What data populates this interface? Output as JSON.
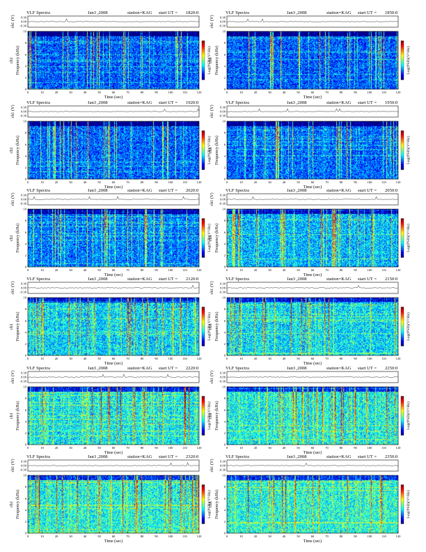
{
  "header": {
    "program": "VLF Spectra",
    "date": "Jan3 ,2008",
    "station": "station=KAG",
    "start_prefix": "start  UT  ="
  },
  "labels": {
    "ch1_waveform": "ch1 (V)",
    "ch1_prefix": "ch1",
    "frequency": "Frequency (kHz)",
    "time": "Time (sec)",
    "colorbar": "Log(PSD)(V²/Hz)",
    "waveform_ticks": [
      "0.30",
      "0.00",
      "-0.30"
    ]
  },
  "chart_data": [
    {
      "type": "heatmap",
      "title": "1820:0",
      "xlabel": "Time (sec)",
      "ylabel": "Frequency (kHz)",
      "xlim": [
        0,
        120
      ],
      "ylim": [
        0,
        10
      ],
      "xticks": [
        0,
        10,
        20,
        30,
        40,
        50,
        60,
        70,
        80,
        90,
        100,
        110,
        120
      ],
      "yticks": [
        0,
        2,
        4,
        6,
        8,
        10
      ],
      "intensity": 0.35
    },
    {
      "type": "heatmap",
      "title": "1850:0",
      "xlabel": "Time (sec)",
      "ylabel": "Frequency (kHz)",
      "xlim": [
        0,
        120
      ],
      "ylim": [
        0,
        10
      ],
      "xticks": [
        0,
        10,
        20,
        30,
        40,
        50,
        60,
        70,
        80,
        90,
        100,
        110,
        120
      ],
      "yticks": [
        0,
        2,
        4,
        6,
        8,
        10
      ],
      "intensity": 0.35
    },
    {
      "type": "heatmap",
      "title": "1920:0",
      "xlabel": "Time (sec)",
      "ylabel": "Frequency (kHz)",
      "xlim": [
        0,
        120
      ],
      "ylim": [
        0,
        10
      ],
      "xticks": [
        0,
        10,
        20,
        30,
        40,
        50,
        60,
        70,
        80,
        90,
        100,
        110,
        120
      ],
      "yticks": [
        0,
        2,
        4,
        6,
        8,
        10
      ],
      "intensity": 0.38
    },
    {
      "type": "heatmap",
      "title": "1950:0",
      "xlabel": "Time (sec)",
      "ylabel": "Frequency (kHz)",
      "xlim": [
        0,
        120
      ],
      "ylim": [
        0,
        10
      ],
      "xticks": [
        0,
        10,
        20,
        30,
        40,
        50,
        60,
        70,
        80,
        90,
        100,
        110,
        120
      ],
      "yticks": [
        0,
        2,
        4,
        6,
        8,
        10
      ],
      "intensity": 0.38
    },
    {
      "type": "heatmap",
      "title": "2020:0",
      "xlabel": "Time (sec)",
      "ylabel": "Frequency (kHz)",
      "xlim": [
        0,
        120
      ],
      "ylim": [
        0,
        10
      ],
      "xticks": [
        0,
        10,
        20,
        30,
        40,
        50,
        60,
        70,
        80,
        90,
        100,
        110,
        120
      ],
      "yticks": [
        0,
        2,
        4,
        6,
        8,
        10
      ],
      "intensity": 0.42
    },
    {
      "type": "heatmap",
      "title": "2050:0",
      "xlabel": "Time (sec)",
      "ylabel": "Frequency (kHz)",
      "xlim": [
        0,
        120
      ],
      "ylim": [
        0,
        10
      ],
      "xticks": [
        0,
        10,
        20,
        30,
        40,
        50,
        60,
        70,
        80,
        90,
        100,
        110,
        120
      ],
      "yticks": [
        0,
        2,
        4,
        6,
        8,
        10
      ],
      "intensity": 0.55
    },
    {
      "type": "heatmap",
      "title": "2120:0",
      "xlabel": "Time (sec)",
      "ylabel": "Frequency (kHz)",
      "xlim": [
        0,
        120
      ],
      "ylim": [
        0,
        10
      ],
      "xticks": [
        0,
        10,
        20,
        30,
        40,
        50,
        60,
        70,
        80,
        90,
        100,
        110,
        120
      ],
      "yticks": [
        0,
        2,
        4,
        6,
        8,
        10
      ],
      "intensity": 0.6
    },
    {
      "type": "heatmap",
      "title": "2150:0",
      "xlabel": "Time (sec)",
      "ylabel": "Frequency (kHz)",
      "xlim": [
        0,
        120
      ],
      "ylim": [
        0,
        10
      ],
      "xticks": [
        0,
        10,
        20,
        30,
        40,
        50,
        60,
        70,
        80,
        90,
        100,
        110,
        120
      ],
      "yticks": [
        0,
        2,
        4,
        6,
        8,
        10
      ],
      "intensity": 0.62
    },
    {
      "type": "heatmap",
      "title": "2220:0",
      "xlabel": "Time (sec)",
      "ylabel": "Frequency (kHz)",
      "xlim": [
        0,
        120
      ],
      "ylim": [
        0,
        10
      ],
      "xticks": [
        0,
        10,
        20,
        30,
        40,
        50,
        60,
        70,
        80,
        90,
        100,
        110,
        120
      ],
      "yticks": [
        0,
        2,
        4,
        6,
        8,
        10
      ],
      "intensity": 0.66
    },
    {
      "type": "heatmap",
      "title": "2250:0",
      "xlabel": "Time (sec)",
      "ylabel": "Frequency (kHz)",
      "xlim": [
        0,
        120
      ],
      "ylim": [
        0,
        10
      ],
      "xticks": [
        0,
        10,
        20,
        30,
        40,
        50,
        60,
        70,
        80,
        90,
        100,
        110,
        120
      ],
      "yticks": [
        0,
        2,
        4,
        6,
        8,
        10
      ],
      "intensity": 0.68
    },
    {
      "type": "heatmap",
      "title": "2320:0",
      "xlabel": "Time (sec)",
      "ylabel": "Frequency (kHz)",
      "xlim": [
        0,
        120
      ],
      "ylim": [
        0,
        10
      ],
      "xticks": [
        0,
        10,
        20,
        30,
        40,
        50,
        60,
        70,
        80,
        90,
        100,
        110,
        120
      ],
      "yticks": [
        0,
        2,
        4,
        6,
        8,
        10
      ],
      "intensity": 0.7
    },
    {
      "type": "heatmap",
      "title": "2350:0",
      "xlabel": "Time (sec)",
      "ylabel": "Frequency (kHz)",
      "xlim": [
        0,
        120
      ],
      "ylim": [
        0,
        10
      ],
      "xticks": [
        0,
        10,
        20,
        30,
        40,
        50,
        60,
        70,
        80,
        90,
        100,
        110,
        120
      ],
      "yticks": [
        0,
        2,
        4,
        6,
        8,
        10
      ],
      "intensity": 0.72
    }
  ],
  "colors": {
    "colormap": [
      "#00007f",
      "#0000ff",
      "#007fff",
      "#00ffff",
      "#7fff7f",
      "#ffff00",
      "#ff7f00",
      "#ff0000",
      "#7f0000"
    ],
    "axes": "#000000",
    "background": "#ffffff"
  }
}
